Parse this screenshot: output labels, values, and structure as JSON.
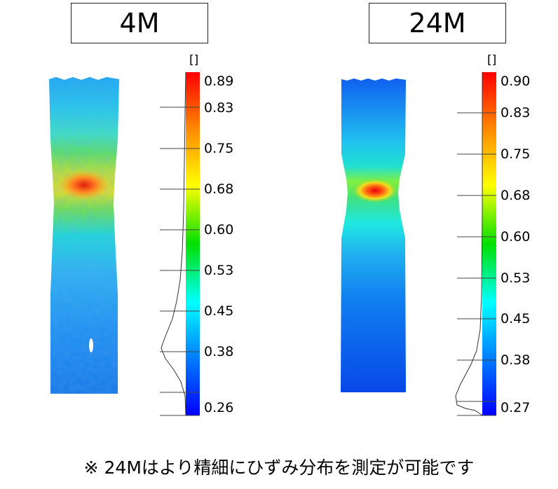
{
  "panels": [
    {
      "title": "4M",
      "unit": "[]",
      "colorbar_ticks": [
        "0.89",
        "0.83",
        "0.75",
        "0.68",
        "0.60",
        "0.53",
        "0.45",
        "0.38",
        "0.26"
      ]
    },
    {
      "title": "24M",
      "unit": "[]",
      "colorbar_ticks": [
        "0.90",
        "0.83",
        "0.75",
        "0.68",
        "0.60",
        "0.53",
        "0.45",
        "0.38",
        "0.27"
      ]
    }
  ],
  "footnote": "※  24Mはより精細にひずみ分布を測定が可能です",
  "colors": {
    "scale": [
      "#ff0000",
      "#ff8c00",
      "#ffff00",
      "#00e000",
      "#00ffff",
      "#0080ff",
      "#0000ff"
    ]
  }
}
